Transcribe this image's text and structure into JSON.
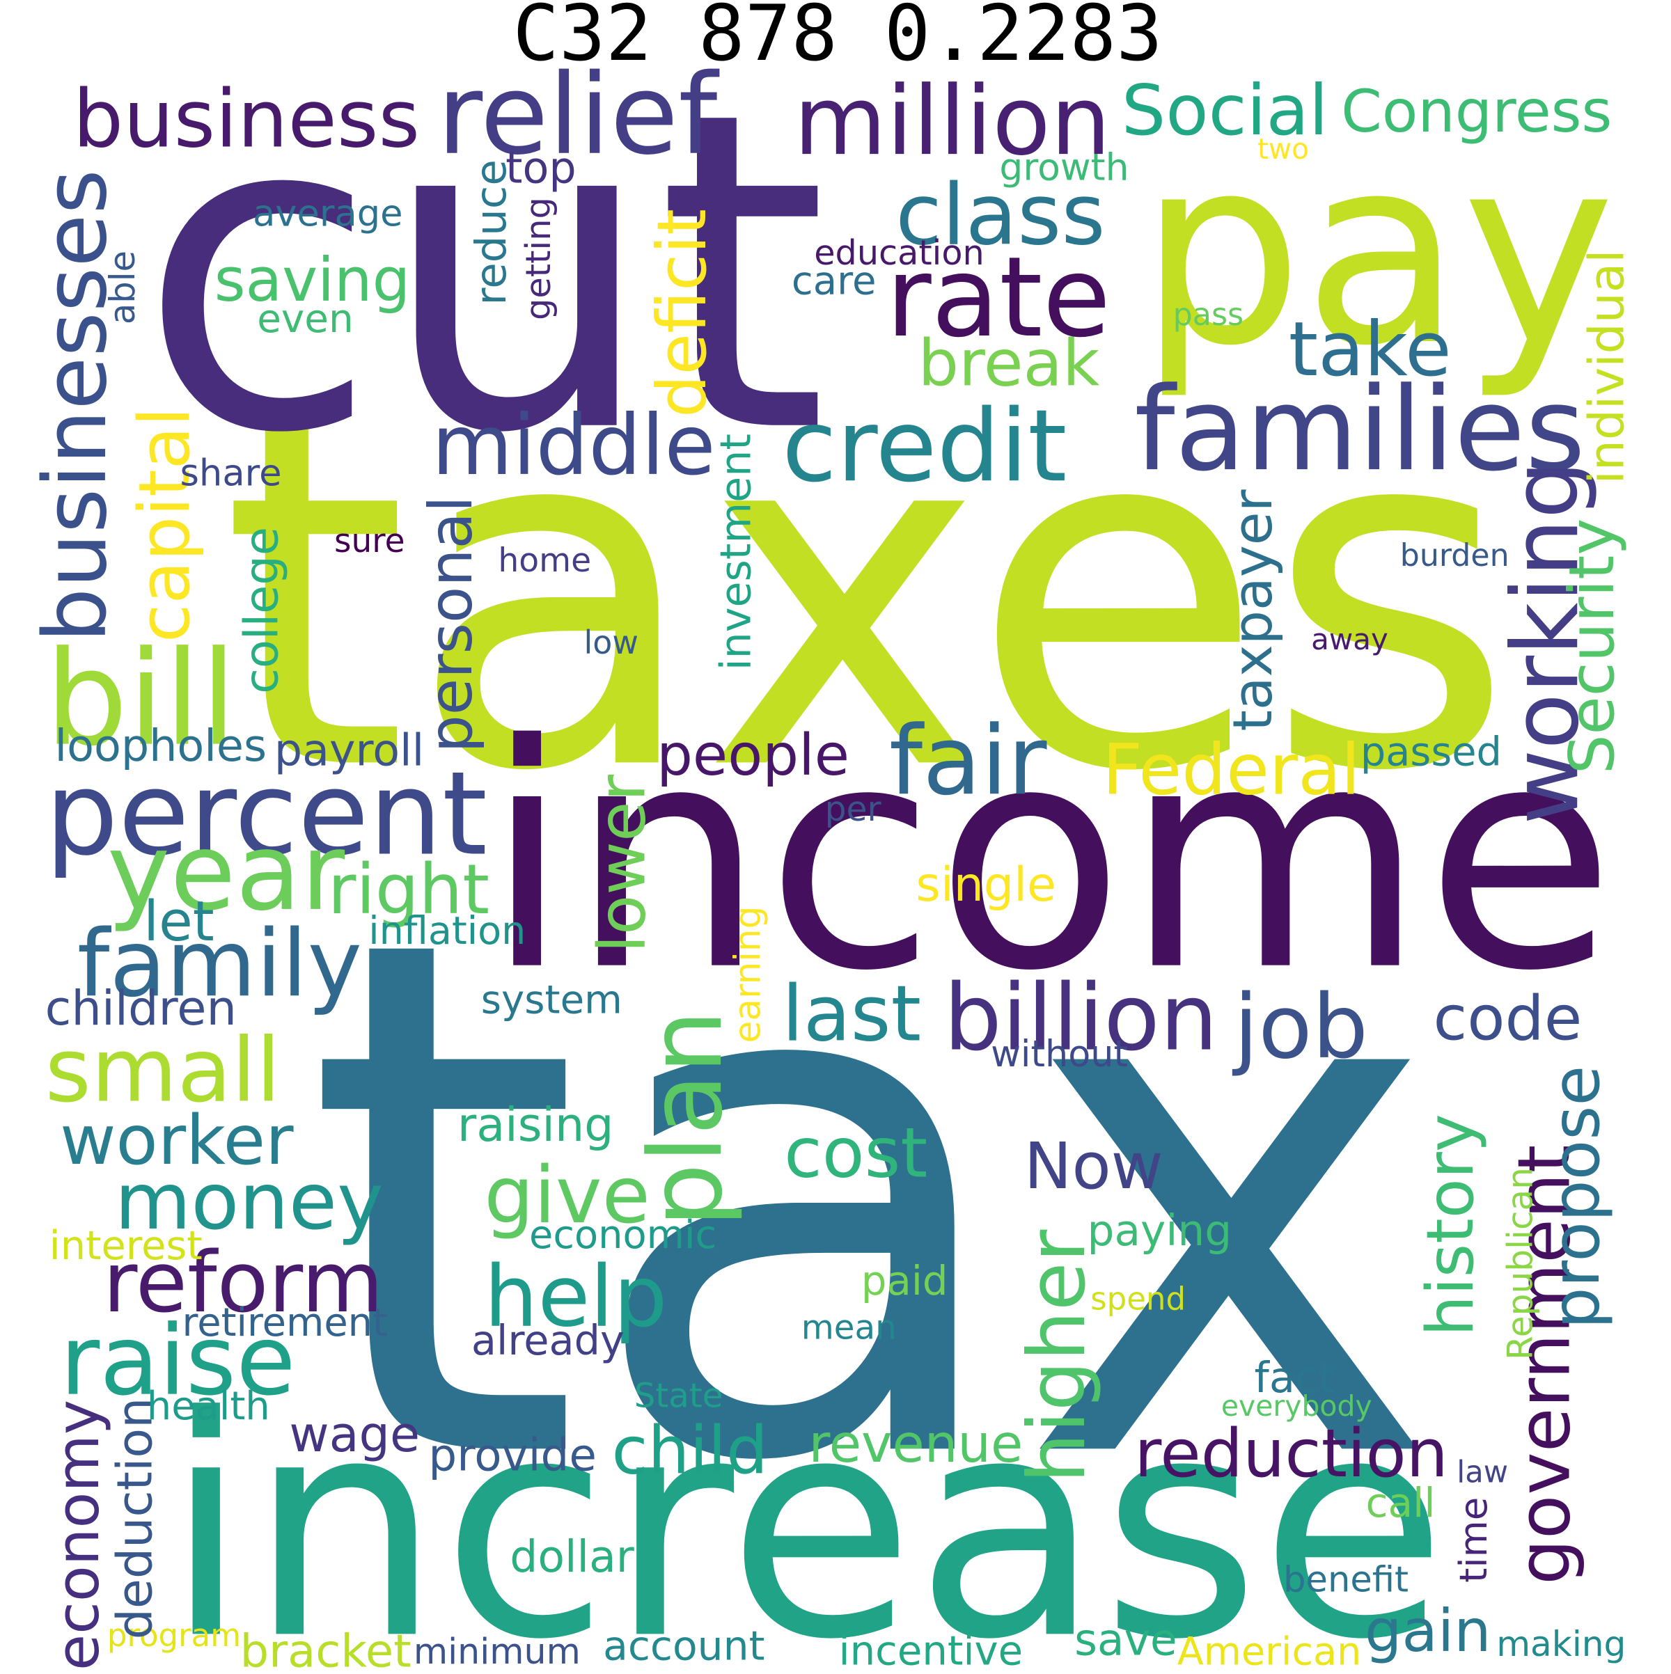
{
  "title": "C32 878 0.2283",
  "palette": [
    "#440154",
    "#482878",
    "#3e4989",
    "#31688e",
    "#26828e",
    "#1f9e89",
    "#35b779",
    "#6ece58",
    "#b5de2b",
    "#c2df23",
    "#fde725"
  ],
  "words": [
    {
      "text": "tax",
      "color": "#2d718e"
    },
    {
      "text": "taxes",
      "color": "#c2df23"
    },
    {
      "text": "cut",
      "color": "#472d7b"
    },
    {
      "text": "income",
      "color": "#440f5d"
    },
    {
      "text": "increase",
      "color": "#20a386"
    },
    {
      "text": "pay",
      "color": "#c2df23"
    },
    {
      "text": "rate",
      "color": "#440f5d"
    },
    {
      "text": "million",
      "color": "#482173"
    },
    {
      "text": "relief",
      "color": "#433e85"
    },
    {
      "text": "business",
      "color": "#481a6c"
    },
    {
      "text": "businesses",
      "color": "#3b518b"
    },
    {
      "text": "percent",
      "color": "#3e4a89"
    },
    {
      "text": "year",
      "color": "#6ccd5a"
    },
    {
      "text": "families",
      "color": "#404688"
    },
    {
      "text": "credit",
      "color": "#25858e"
    },
    {
      "text": "middle",
      "color": "#3e4a89"
    },
    {
      "text": "class",
      "color": "#2a768e"
    },
    {
      "text": "Social",
      "color": "#22a785"
    },
    {
      "text": "Congress",
      "color": "#3dbc74"
    },
    {
      "text": "take",
      "color": "#2e6e8e"
    },
    {
      "text": "break",
      "color": "#7ad151"
    },
    {
      "text": "saving",
      "color": "#4ac16d"
    },
    {
      "text": "bill",
      "color": "#a0da39"
    },
    {
      "text": "family",
      "color": "#31688e"
    },
    {
      "text": "working",
      "color": "#433e85"
    },
    {
      "text": "Security",
      "color": "#52c569"
    },
    {
      "text": "capital",
      "color": "#fde725"
    },
    {
      "text": "deficit",
      "color": "#fde725"
    },
    {
      "text": "personal",
      "color": "#3b528b"
    },
    {
      "text": "taxpayer",
      "color": "#2d708e"
    },
    {
      "text": "fair",
      "color": "#31688e"
    },
    {
      "text": "Federal",
      "color": "#f1e51d"
    },
    {
      "text": "people",
      "color": "#481668"
    },
    {
      "text": "lower",
      "color": "#6ece58"
    },
    {
      "text": "right",
      "color": "#5ec962"
    },
    {
      "text": "small",
      "color": "#addc30"
    },
    {
      "text": "money",
      "color": "#20938c"
    },
    {
      "text": "reform",
      "color": "#481b6d"
    },
    {
      "text": "raise",
      "color": "#1fa088"
    },
    {
      "text": "worker",
      "color": "#287d8e"
    },
    {
      "text": "plan",
      "color": "#5cc863"
    },
    {
      "text": "give",
      "color": "#5ec962"
    },
    {
      "text": "help",
      "color": "#1e9b8a"
    },
    {
      "text": "billion",
      "color": "#46327e"
    },
    {
      "text": "job",
      "color": "#3b528b"
    },
    {
      "text": "last",
      "color": "#24868e"
    },
    {
      "text": "code",
      "color": "#3c4f8a"
    },
    {
      "text": "cost",
      "color": "#2fb47c"
    },
    {
      "text": "Now",
      "color": "#414487"
    },
    {
      "text": "higher",
      "color": "#50c46a"
    },
    {
      "text": "history",
      "color": "#3fbc73"
    },
    {
      "text": "government",
      "color": "#440f5d"
    },
    {
      "text": "propose",
      "color": "#2c728e"
    },
    {
      "text": "reduction",
      "color": "#471365"
    },
    {
      "text": "revenue",
      "color": "#52c569"
    },
    {
      "text": "child",
      "color": "#1fa188"
    },
    {
      "text": "wage",
      "color": "#453581"
    },
    {
      "text": "economy",
      "color": "#462f7e"
    },
    {
      "text": "gain",
      "color": "#2a778e"
    },
    {
      "text": "account",
      "color": "#23898e"
    },
    {
      "text": "incentive",
      "color": "#22a884"
    },
    {
      "text": "save",
      "color": "#2ab07f"
    },
    {
      "text": "American",
      "color": "#ece51b"
    },
    {
      "text": "making",
      "color": "#228b8d"
    },
    {
      "text": "minimum",
      "color": "#3b528b"
    },
    {
      "text": "bracket",
      "color": "#b8de29"
    },
    {
      "text": "program",
      "color": "#e5e419"
    },
    {
      "text": "deduction",
      "color": "#38588c"
    },
    {
      "text": "health",
      "color": "#1e9b8a"
    },
    {
      "text": "retirement",
      "color": "#33638d"
    },
    {
      "text": "interest",
      "color": "#d2e21b"
    },
    {
      "text": "economic",
      "color": "#1e9b8a"
    },
    {
      "text": "already",
      "color": "#424086"
    },
    {
      "text": "mean",
      "color": "#24868e"
    },
    {
      "text": "paid",
      "color": "#75d054"
    },
    {
      "text": "paying",
      "color": "#3bbb75"
    },
    {
      "text": "spend",
      "color": "#d0e11c"
    },
    {
      "text": "fact",
      "color": "#2a768e"
    },
    {
      "text": "everybody",
      "color": "#58c765"
    },
    {
      "text": "State",
      "color": "#1f9e89"
    },
    {
      "text": "Republican",
      "color": "#8bd646"
    },
    {
      "text": "law",
      "color": "#414487"
    },
    {
      "text": "call",
      "color": "#6ece58"
    },
    {
      "text": "time",
      "color": "#482677"
    },
    {
      "text": "benefit",
      "color": "#2c738e"
    },
    {
      "text": "dollar",
      "color": "#2ab07f"
    },
    {
      "text": "provide",
      "color": "#38598c"
    },
    {
      "text": "raising",
      "color": "#2cb17e"
    },
    {
      "text": "without",
      "color": "#3e4989"
    },
    {
      "text": "system",
      "color": "#2a788e"
    },
    {
      "text": "earning",
      "color": "#fde725"
    },
    {
      "text": "inflation",
      "color": "#20938c"
    },
    {
      "text": "single",
      "color": "#fde725"
    },
    {
      "text": "per",
      "color": "#3b528b"
    },
    {
      "text": "passed",
      "color": "#25848e"
    },
    {
      "text": "away",
      "color": "#481a6c"
    },
    {
      "text": "low",
      "color": "#375a8c"
    },
    {
      "text": "burden",
      "color": "#38598c"
    },
    {
      "text": "individual",
      "color": "#c5e021"
    },
    {
      "text": "pass",
      "color": "#65cb5e"
    },
    {
      "text": "two",
      "color": "#fde725"
    },
    {
      "text": "growth",
      "color": "#3bbb75"
    },
    {
      "text": "education",
      "color": "#48186a"
    },
    {
      "text": "care",
      "color": "#2e6f8e"
    },
    {
      "text": "getting",
      "color": "#482979"
    },
    {
      "text": "reduce",
      "color": "#2a788e"
    },
    {
      "text": "top",
      "color": "#453581"
    },
    {
      "text": "average",
      "color": "#2c728e"
    },
    {
      "text": "even",
      "color": "#3fbc73"
    },
    {
      "text": "able",
      "color": "#38598c"
    },
    {
      "text": "share",
      "color": "#3e4989"
    },
    {
      "text": "sure",
      "color": "#440154"
    },
    {
      "text": "home",
      "color": "#433e85"
    },
    {
      "text": "investment",
      "color": "#20a486"
    },
    {
      "text": "college",
      "color": "#29af7f"
    },
    {
      "text": "loopholes",
      "color": "#2c728e"
    },
    {
      "text": "payroll",
      "color": "#3b528b"
    },
    {
      "text": "let",
      "color": "#25848e"
    },
    {
      "text": "children",
      "color": "#3c4f8a"
    }
  ]
}
